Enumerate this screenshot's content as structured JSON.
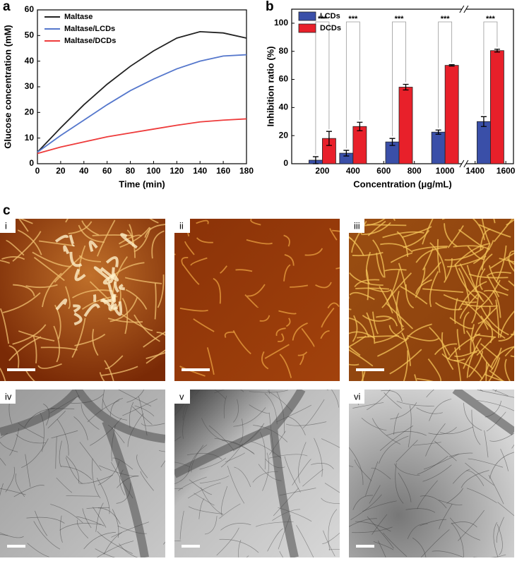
{
  "panels": {
    "a": "a",
    "b": "b",
    "c": "c"
  },
  "chart_data": [
    {
      "type": "line",
      "xlabel": "Time (min)",
      "ylabel": "Glucose concentration (mM)",
      "x": [
        0,
        20,
        40,
        60,
        80,
        100,
        120,
        140,
        160,
        180
      ],
      "series": [
        {
          "name": "Maltase",
          "color": "#222222",
          "values": [
            4.5,
            14,
            23,
            31,
            38,
            44,
            49,
            51.5,
            51,
            49
          ]
        },
        {
          "name": "Maltase/LCDs",
          "color": "#5577cc",
          "values": [
            4.5,
            11,
            17,
            23,
            28.5,
            33,
            37,
            40,
            42,
            42.5
          ]
        },
        {
          "name": "Maltase/DCDs",
          "color": "#ee3b3b",
          "values": [
            4,
            6.5,
            8.5,
            10.5,
            12,
            13.5,
            15,
            16.3,
            17,
            17.5
          ]
        }
      ],
      "xlim": [
        0,
        180
      ],
      "xticks": [
        0,
        20,
        40,
        60,
        80,
        100,
        120,
        140,
        160,
        180
      ],
      "ylim": [
        0,
        60
      ],
      "yticks": [
        0,
        10,
        20,
        30,
        40,
        50,
        60
      ],
      "legend": "upper left"
    },
    {
      "type": "bar",
      "xlabel": "Concentration (μg/mL)",
      "ylabel": "Inhibition ratio (%)",
      "x": [
        200,
        400,
        700,
        1000,
        1500
      ],
      "series": [
        {
          "name": "LCDs",
          "color": "#3a4fa8",
          "values": [
            2.5,
            7.5,
            15.5,
            22.5,
            30
          ],
          "errors": [
            2.5,
            2,
            2.5,
            1.5,
            3.5
          ]
        },
        {
          "name": "DCDs",
          "color": "#e8202a",
          "values": [
            18,
            26.5,
            54.5,
            70,
            80.5
          ],
          "errors": [
            5,
            3,
            2,
            0.5,
            1
          ]
        }
      ],
      "significance": [
        "***",
        "***",
        "***",
        "***",
        "***"
      ],
      "xlim": [
        0,
        1650
      ],
      "x_break": [
        1100,
        1350
      ],
      "xticks": [
        200,
        400,
        600,
        800,
        1000,
        1400,
        1600
      ],
      "ylim": [
        0,
        110
      ],
      "yticks": [
        0,
        20,
        40,
        60,
        80,
        100
      ],
      "legend": "upper left"
    }
  ],
  "images": [
    {
      "label": "i"
    },
    {
      "label": "ii"
    },
    {
      "label": "iii"
    },
    {
      "label": "iv"
    },
    {
      "label": "v"
    },
    {
      "label": "vi"
    }
  ]
}
